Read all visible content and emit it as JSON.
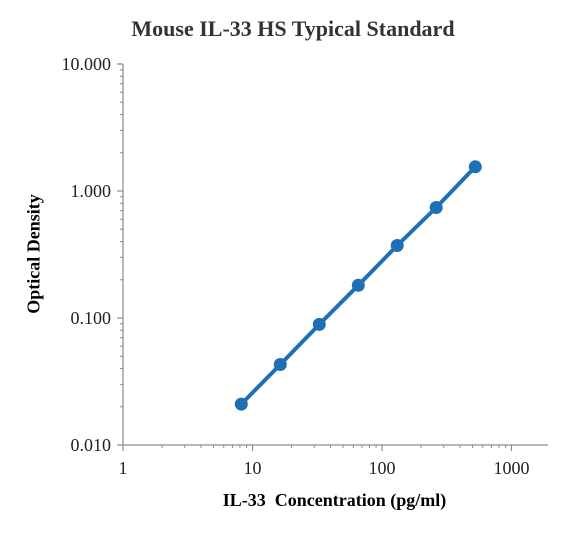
{
  "chart_data": {
    "type": "line",
    "title": "Mouse IL-33 HS Typical Standard",
    "xlabel": "IL-33  Concentration (pg/ml)",
    "ylabel": "Optical Density",
    "x_scale": "log",
    "y_scale": "log",
    "xlim": [
      1,
      1000
    ],
    "ylim": [
      0.01,
      10
    ],
    "x_ticks": [
      "1",
      "10",
      "100",
      "1000"
    ],
    "y_ticks": [
      "0.010",
      "0.100",
      "1.000",
      "10.000"
    ],
    "grid": false,
    "legend": "none",
    "series": [
      {
        "color": "#1f6fb5",
        "x": [
          8.2,
          16.4,
          32.8,
          65.6,
          131,
          262,
          525
        ],
        "y": [
          0.021,
          0.043,
          0.089,
          0.181,
          0.372,
          0.741,
          1.55
        ]
      }
    ]
  }
}
